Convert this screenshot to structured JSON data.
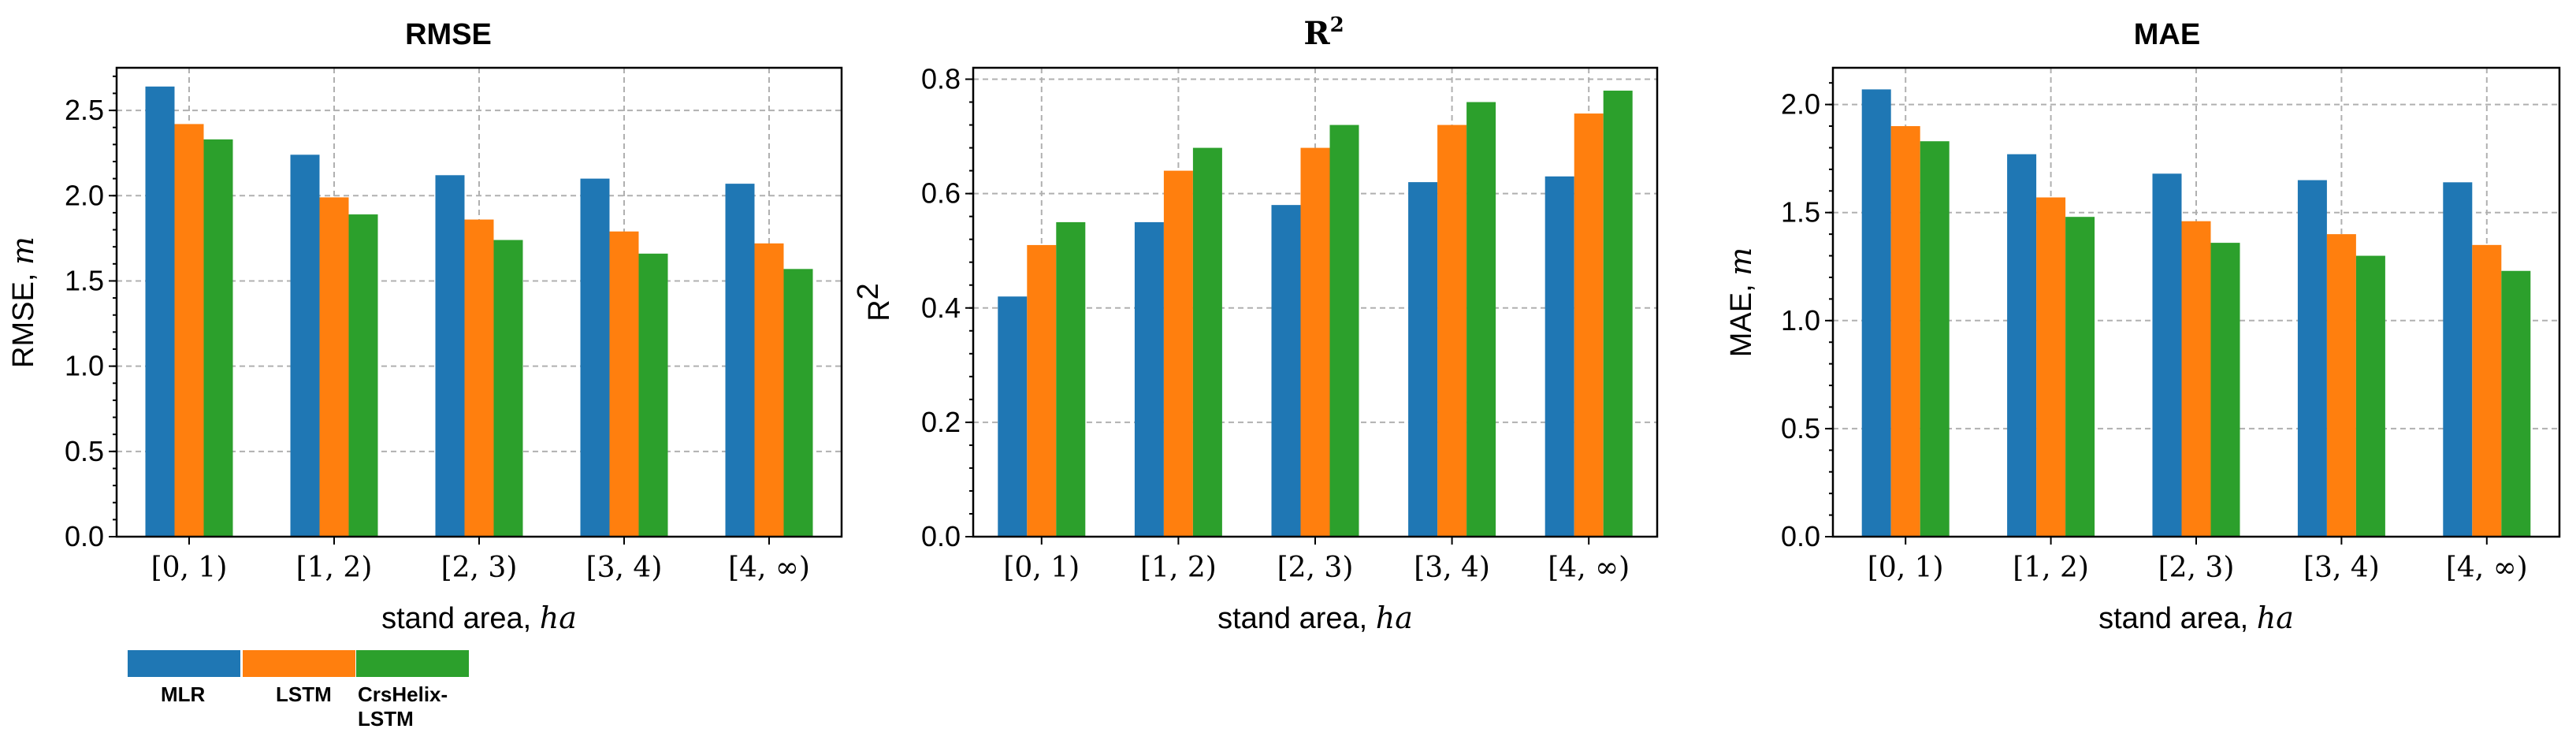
{
  "colors": {
    "MLR": "#1f77b4",
    "LSTM": "#ff7f0e",
    "CrsHelix-LSTM": "#2ca02c"
  },
  "legend": {
    "items": [
      {
        "key": "MLR",
        "label_lines": [
          "MLR"
        ]
      },
      {
        "key": "LSTM",
        "label_lines": [
          "LSTM"
        ]
      },
      {
        "key": "CrsHelix-LSTM",
        "label_lines": [
          "CrsHelix-",
          "LSTM"
        ]
      }
    ]
  },
  "chart_data": [
    {
      "type": "bar",
      "title": "RMSE",
      "xlabel": "stand area,",
      "xlabel_unit": "ha",
      "ylabel": "RMSE,",
      "ylabel_unit": "m",
      "ylim": [
        0,
        2.75
      ],
      "yticks": [
        "0.0",
        "0.5",
        "1.0",
        "1.5",
        "2.0",
        "2.5"
      ],
      "ytick_values": [
        0,
        0.5,
        1.0,
        1.5,
        2.0,
        2.5
      ],
      "categories": [
        "[0, 1)",
        "[1, 2)",
        "[2, 3)",
        "[3, 4)",
        "[4, ∞)"
      ],
      "grid": true,
      "series": [
        {
          "name": "MLR",
          "values": [
            2.64,
            2.24,
            2.12,
            2.1,
            2.07
          ]
        },
        {
          "name": "LSTM",
          "values": [
            2.42,
            1.99,
            1.86,
            1.79,
            1.72
          ]
        },
        {
          "name": "CrsHelix-LSTM",
          "values": [
            2.33,
            1.89,
            1.74,
            1.66,
            1.57
          ]
        }
      ]
    },
    {
      "type": "bar",
      "title": "R",
      "title_sup": "2",
      "xlabel": "stand area,",
      "xlabel_unit": "ha",
      "ylabel": "R",
      "ylabel_sup": "2",
      "ylabel_unit": "",
      "ylim": [
        0,
        0.82
      ],
      "yticks": [
        "0.0",
        "0.2",
        "0.4",
        "0.6",
        "0.8"
      ],
      "ytick_values": [
        0,
        0.2,
        0.4,
        0.6,
        0.8
      ],
      "categories": [
        "[0, 1)",
        "[1, 2)",
        "[2, 3)",
        "[3, 4)",
        "[4, ∞)"
      ],
      "grid": true,
      "series": [
        {
          "name": "MLR",
          "values": [
            0.42,
            0.55,
            0.58,
            0.62,
            0.63
          ]
        },
        {
          "name": "LSTM",
          "values": [
            0.51,
            0.64,
            0.68,
            0.72,
            0.74
          ]
        },
        {
          "name": "CrsHelix-LSTM",
          "values": [
            0.55,
            0.68,
            0.72,
            0.76,
            0.78
          ]
        }
      ]
    },
    {
      "type": "bar",
      "title": "MAE",
      "xlabel": "stand area,",
      "xlabel_unit": "ha",
      "ylabel": "MAE,",
      "ylabel_unit": "m",
      "ylim": [
        0,
        2.17
      ],
      "yticks": [
        "0.0",
        "0.5",
        "1.0",
        "1.5",
        "2.0"
      ],
      "ytick_values": [
        0,
        0.5,
        1.0,
        1.5,
        2.0
      ],
      "categories": [
        "[0, 1)",
        "[1, 2)",
        "[2, 3)",
        "[3, 4)",
        "[4, ∞)"
      ],
      "grid": true,
      "series": [
        {
          "name": "MLR",
          "values": [
            2.07,
            1.77,
            1.68,
            1.65,
            1.64
          ]
        },
        {
          "name": "LSTM",
          "values": [
            1.9,
            1.57,
            1.46,
            1.4,
            1.35
          ]
        },
        {
          "name": "CrsHelix-LSTM",
          "values": [
            1.83,
            1.48,
            1.36,
            1.3,
            1.23
          ]
        }
      ]
    }
  ]
}
